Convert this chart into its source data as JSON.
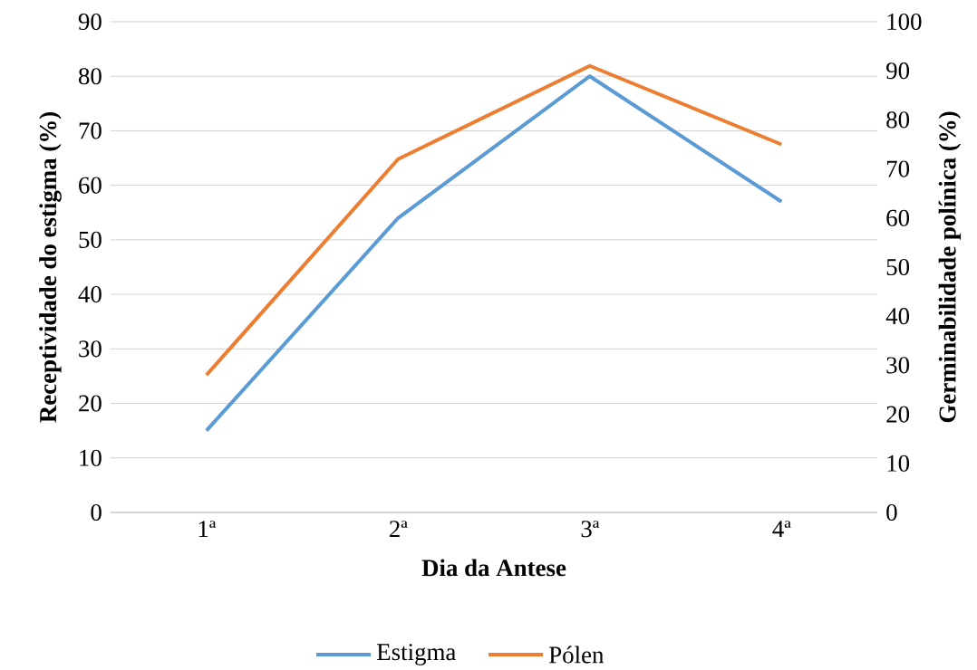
{
  "chart_data": {
    "type": "line",
    "xlabel": "Dia da Antese",
    "ylabel": "Receptividade do estigma (%)",
    "y2label": "Germinabilidade polínica (%)",
    "categories": [
      "1ª",
      "2ª",
      "3ª",
      "4ª"
    ],
    "series": [
      {
        "name": "Estigma",
        "color": "#5b9bd5",
        "values": [
          15,
          54,
          80,
          57
        ]
      },
      {
        "name": "Pólen",
        "color": "#ed7d31",
        "values": [
          28,
          72,
          91,
          75
        ],
        "axis": "y2"
      }
    ],
    "ylim": [
      0,
      90
    ],
    "yticks": [
      0,
      10,
      20,
      30,
      40,
      50,
      60,
      70,
      80,
      90
    ],
    "y2lim": [
      0,
      100
    ],
    "y2ticks": [
      0,
      10,
      20,
      30,
      40,
      50,
      60,
      70,
      80,
      90,
      100
    ],
    "grid": "y",
    "legend": "bottom",
    "marker": "none",
    "line_style": "solid"
  }
}
